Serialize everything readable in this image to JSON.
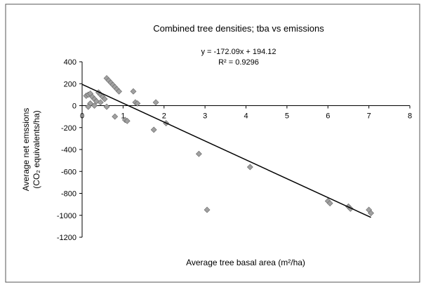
{
  "chart_data": {
    "type": "scatter",
    "title": "Combined tree densities; tba vs emissions",
    "annotations": [
      "y = -172.09x + 194.12",
      "R² = 0.9296"
    ],
    "xlabel": "Average tree basal area (m²/ha)",
    "ylabel": [
      "Average net emssions",
      "(CO₂ equivalents/ha)"
    ],
    "xlim": [
      0,
      8
    ],
    "ylim": [
      -1200,
      400
    ],
    "xticks": [
      0,
      1,
      2,
      3,
      4,
      5,
      6,
      7,
      8
    ],
    "yticks": [
      -1200,
      -1000,
      -800,
      -600,
      -400,
      -200,
      0,
      200,
      400
    ],
    "grid": false,
    "color": "#a0a0a0",
    "x": [
      0.1,
      0.15,
      0.2,
      0.25,
      0.3,
      0.35,
      0.2,
      0.15,
      0.3,
      0.4,
      0.45,
      0.5,
      0.55,
      0.45,
      0.6,
      0.65,
      0.7,
      0.75,
      0.8,
      0.85,
      0.9,
      0.6,
      0.8,
      1.05,
      1.1,
      1.25,
      1.3,
      1.35,
      1.75,
      1.8,
      2.05,
      2.85,
      3.05,
      4.1,
      6.0,
      6.05,
      6.5,
      6.55,
      7.0,
      7.05
    ],
    "values": [
      90,
      100,
      110,
      80,
      60,
      40,
      20,
      -10,
      0,
      120,
      100,
      80,
      60,
      30,
      250,
      230,
      210,
      190,
      170,
      150,
      130,
      -10,
      -100,
      -130,
      -140,
      130,
      30,
      20,
      -220,
      30,
      -160,
      -440,
      -950,
      -560,
      -870,
      -890,
      -920,
      -940,
      -950,
      -980
    ],
    "trendline": {
      "x": [
        0,
        7.05
      ],
      "y": [
        194.12,
        -1019.11
      ],
      "color": "#000000"
    }
  }
}
